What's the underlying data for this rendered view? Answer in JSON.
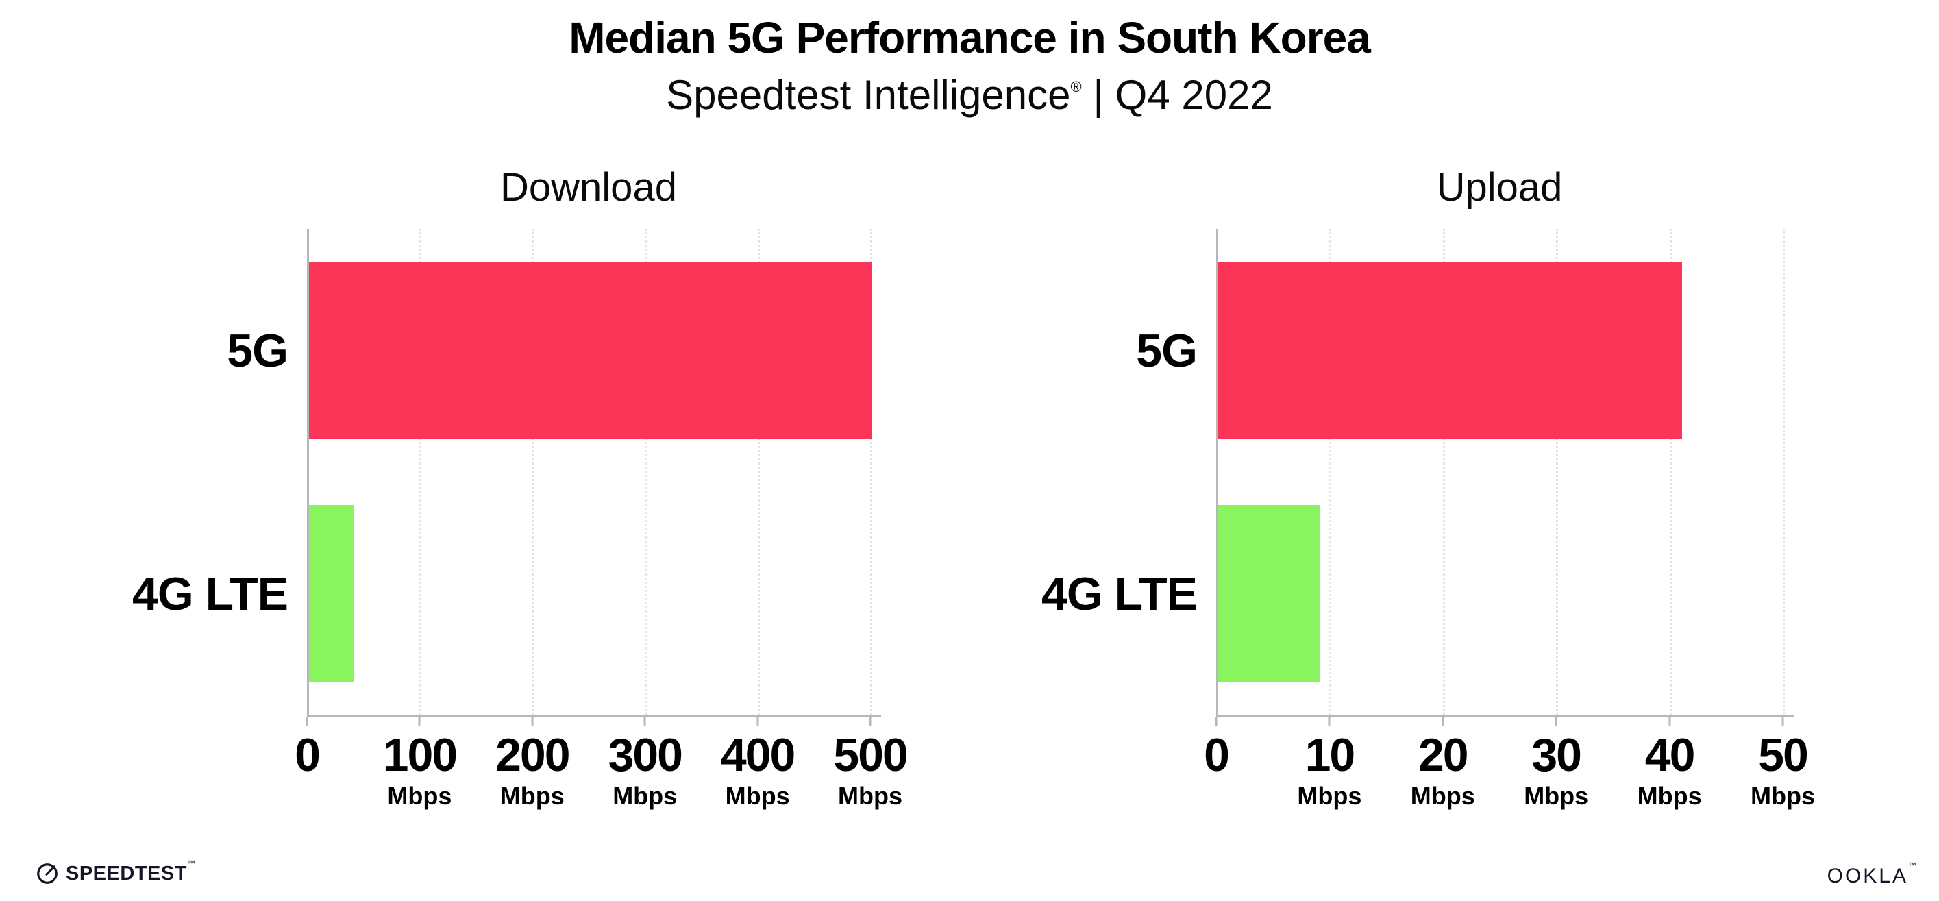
{
  "header": {
    "title": "Median 5G Performance in South Korea",
    "subtitle_brand": "Speedtest Intelligence",
    "subtitle_reg": "®",
    "subtitle_rest": " | Q4 2022"
  },
  "chart_data": [
    {
      "type": "bar",
      "orientation": "horizontal",
      "title": "Download",
      "categories": [
        "5G",
        "4G LTE"
      ],
      "values": [
        500,
        40
      ],
      "unit": "Mbps",
      "xlim": [
        0,
        500
      ],
      "xticks": [
        0,
        100,
        200,
        300,
        400,
        500
      ],
      "xtick_unit_label": "Mbps",
      "bar_colors": [
        "#fb3558",
        "#89f55e"
      ],
      "grid": "dotted-vertical",
      "legend": "none"
    },
    {
      "type": "bar",
      "orientation": "horizontal",
      "title": "Upload",
      "categories": [
        "5G",
        "4G LTE"
      ],
      "values": [
        41,
        9
      ],
      "unit": "Mbps",
      "xlim": [
        0,
        50
      ],
      "xticks": [
        0,
        10,
        20,
        30,
        40,
        50
      ],
      "xtick_unit_label": "Mbps",
      "bar_colors": [
        "#fb3558",
        "#89f55e"
      ],
      "grid": "dotted-vertical",
      "legend": "none"
    }
  ],
  "footer": {
    "speedtest_label": "SPEEDTEST",
    "speedtest_tm": "™",
    "ookla_label": "OOKLA",
    "ookla_tm": "™"
  },
  "colors": {
    "bar_5g": "#fb3558",
    "bar_4g_lte": "#89f55e",
    "axis": "#b7b7b7",
    "grid": "#e4e4e4",
    "text": "#000000"
  }
}
